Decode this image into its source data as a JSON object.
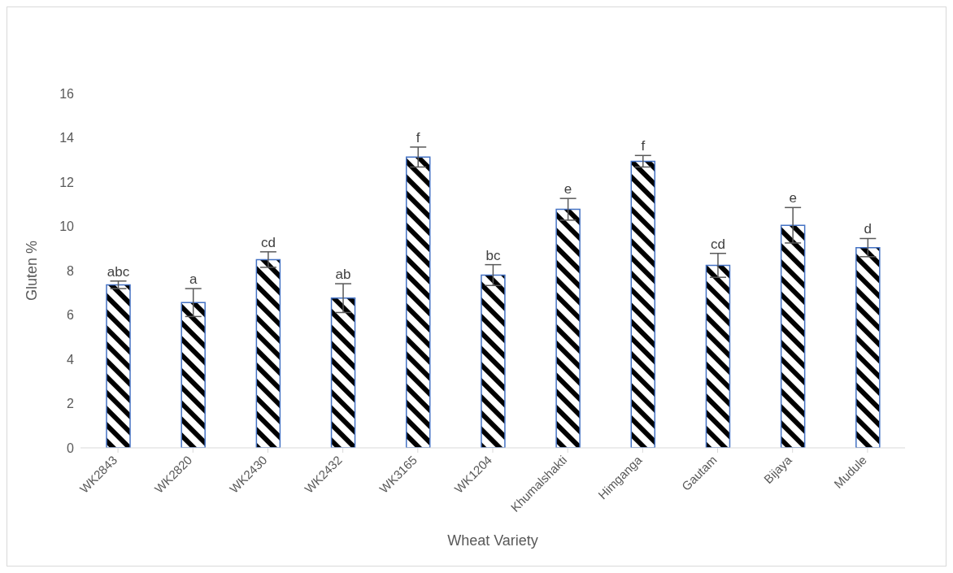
{
  "chart_data": {
    "type": "bar",
    "xlabel": "Wheat Variety",
    "ylabel": "Gluten %",
    "categories": [
      "WK2843",
      "WK2820",
      "WK2430",
      "WK2432",
      "WK3165",
      "WK1204",
      "Khumalshakti",
      "Himganga",
      "Gautam",
      "Bijaya",
      "Mudule"
    ],
    "values": [
      7.36,
      6.56,
      8.5,
      6.76,
      13.13,
      7.8,
      10.77,
      12.94,
      8.24,
      10.05,
      9.04
    ],
    "errors": [
      0.17,
      0.63,
      0.35,
      0.65,
      0.45,
      0.47,
      0.49,
      0.26,
      0.54,
      0.8,
      0.41
    ],
    "value_labels": [
      "abc",
      "a",
      "cd",
      "ab",
      "f",
      "bc",
      "e",
      "f",
      "cd",
      "e",
      "d"
    ],
    "color": "#4472c4",
    "ylim": [
      0,
      16
    ],
    "yticks": [
      0,
      2,
      4,
      6,
      8,
      10,
      12,
      14,
      16
    ],
    "grid": false
  }
}
